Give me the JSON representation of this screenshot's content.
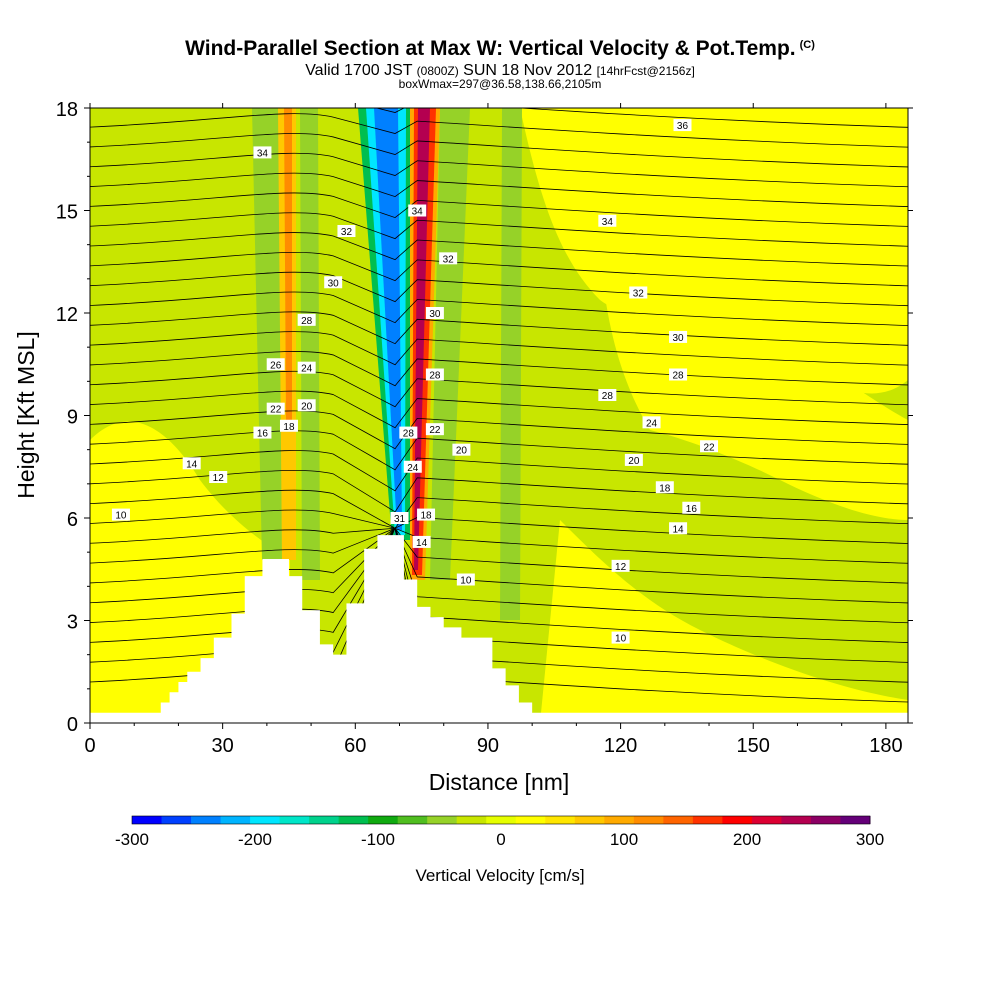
{
  "title": {
    "main": "Wind-Parallel Section at Max W: Vertical Velocity & Pot.Temp.",
    "copyright": "(C)",
    "valid_prefix": "Valid 1700 JST",
    "valid_utc": "(0800Z)",
    "valid_date": "SUN 18 Nov 2012",
    "forecast": "[14hrFcst@2156z]",
    "boxwmax": "boxWmax=297@36.58,138.66,2105m"
  },
  "chart_data": {
    "type": "heatmap",
    "xlabel": "Distance [nm]",
    "ylabel": "Height [Kft MSL]",
    "xlim": [
      0,
      185
    ],
    "ylim": [
      0,
      18
    ],
    "x_ticks": [
      0,
      30,
      60,
      90,
      120,
      150,
      180
    ],
    "y_ticks": [
      0,
      3,
      6,
      9,
      12,
      15,
      18
    ],
    "colorbar": {
      "label": "Vertical Velocity [cm/s]",
      "range": [
        -300,
        300
      ],
      "ticks": [
        -300,
        -200,
        -100,
        0,
        100,
        200,
        300
      ],
      "colors": [
        "#0000ff",
        "#0040ff",
        "#0080ff",
        "#00b4ff",
        "#00e6ff",
        "#00e6c8",
        "#00d28c",
        "#00be50",
        "#10aa10",
        "#50be20",
        "#96d228",
        "#c8e600",
        "#e6ff00",
        "#ffff00",
        "#ffe600",
        "#ffc800",
        "#ffaa00",
        "#ff8c00",
        "#ff6400",
        "#ff3200",
        "#ff0000",
        "#dc0032",
        "#b40050",
        "#8c0064",
        "#640078"
      ]
    },
    "terrain_height_kft": [
      [
        0,
        0.3
      ],
      [
        16,
        0.3
      ],
      [
        16,
        0.6
      ],
      [
        18,
        0.6
      ],
      [
        18,
        0.9
      ],
      [
        20,
        0.9
      ],
      [
        20,
        1.2
      ],
      [
        22,
        1.2
      ],
      [
        22,
        1.5
      ],
      [
        25,
        1.5
      ],
      [
        25,
        1.9
      ],
      [
        28,
        1.9
      ],
      [
        28,
        2.5
      ],
      [
        32,
        2.5
      ],
      [
        32,
        3.2
      ],
      [
        35,
        3.2
      ],
      [
        35,
        4.3
      ],
      [
        39,
        4.3
      ],
      [
        39,
        4.8
      ],
      [
        45,
        4.8
      ],
      [
        45,
        4.3
      ],
      [
        48,
        4.3
      ],
      [
        48,
        3.3
      ],
      [
        52,
        3.3
      ],
      [
        52,
        2.3
      ],
      [
        55,
        2.3
      ],
      [
        55,
        2.0
      ],
      [
        58,
        2.0
      ],
      [
        58,
        3.5
      ],
      [
        62,
        3.5
      ],
      [
        62,
        5.1
      ],
      [
        65,
        5.1
      ],
      [
        65,
        5.5
      ],
      [
        71,
        5.5
      ],
      [
        71,
        4.2
      ],
      [
        74,
        4.2
      ],
      [
        74,
        3.4
      ],
      [
        77,
        3.4
      ],
      [
        77,
        3.1
      ],
      [
        80,
        3.1
      ],
      [
        80,
        2.8
      ],
      [
        84,
        2.8
      ],
      [
        84,
        2.5
      ],
      [
        91,
        2.5
      ],
      [
        91,
        1.6
      ],
      [
        94,
        1.6
      ],
      [
        94,
        1.1
      ],
      [
        97,
        1.1
      ],
      [
        97,
        0.6
      ],
      [
        100,
        0.6
      ],
      [
        100,
        0.3
      ],
      [
        185,
        0.3
      ]
    ],
    "vertical_velocity_features_cm_s": [
      {
        "label": "strong downdraft",
        "x_center": 66,
        "value": -280
      },
      {
        "label": "strong updraft",
        "x_center": 75,
        "value": 300
      },
      {
        "label": "weak updraft",
        "x_center": 46,
        "value": 120
      },
      {
        "label": "weak downdraft",
        "x_center": 40,
        "value": -80
      },
      {
        "label": "weak downdraft",
        "x_center": 96,
        "value": -90
      }
    ],
    "theta_contour_labels": [
      {
        "value": "10",
        "x": 7,
        "y": 6.1
      },
      {
        "value": "12",
        "x": 29,
        "y": 7.2
      },
      {
        "value": "14",
        "x": 23,
        "y": 7.6
      },
      {
        "value": "16",
        "x": 39,
        "y": 8.5
      },
      {
        "value": "18",
        "x": 45,
        "y": 8.7
      },
      {
        "value": "20",
        "x": 49,
        "y": 9.3
      },
      {
        "value": "22",
        "x": 42,
        "y": 9.2
      },
      {
        "value": "24",
        "x": 49,
        "y": 10.4
      },
      {
        "value": "26",
        "x": 42,
        "y": 10.5
      },
      {
        "value": "28",
        "x": 49,
        "y": 11.8
      },
      {
        "value": "30",
        "x": 55,
        "y": 12.9
      },
      {
        "value": "32",
        "x": 58,
        "y": 14.4
      },
      {
        "value": "34",
        "x": 39,
        "y": 16.7
      },
      {
        "value": "31",
        "x": 70,
        "y": 6.0
      },
      {
        "value": "14",
        "x": 75,
        "y": 5.3
      },
      {
        "value": "18",
        "x": 76,
        "y": 6.1
      },
      {
        "value": "24",
        "x": 73,
        "y": 7.5
      },
      {
        "value": "28",
        "x": 72,
        "y": 8.5
      },
      {
        "value": "22",
        "x": 78,
        "y": 8.6
      },
      {
        "value": "20",
        "x": 84,
        "y": 8.0
      },
      {
        "value": "28",
        "x": 78,
        "y": 10.2
      },
      {
        "value": "30",
        "x": 78,
        "y": 12.0
      },
      {
        "value": "32",
        "x": 81,
        "y": 13.6
      },
      {
        "value": "34",
        "x": 74,
        "y": 15.0
      },
      {
        "value": "10",
        "x": 85,
        "y": 4.2
      },
      {
        "value": "10",
        "x": 120,
        "y": 2.5
      },
      {
        "value": "12",
        "x": 120,
        "y": 4.6
      },
      {
        "value": "14",
        "x": 133,
        "y": 5.7
      },
      {
        "value": "16",
        "x": 136,
        "y": 6.3
      },
      {
        "value": "18",
        "x": 130,
        "y": 6.9
      },
      {
        "value": "20",
        "x": 123,
        "y": 7.7
      },
      {
        "value": "22",
        "x": 140,
        "y": 8.1
      },
      {
        "value": "24",
        "x": 127,
        "y": 8.8
      },
      {
        "value": "28",
        "x": 117,
        "y": 9.6
      },
      {
        "value": "28",
        "x": 133,
        "y": 10.2
      },
      {
        "value": "30",
        "x": 133,
        "y": 11.3
      },
      {
        "value": "32",
        "x": 124,
        "y": 12.6
      },
      {
        "value": "34",
        "x": 117,
        "y": 14.7
      },
      {
        "value": "36",
        "x": 134,
        "y": 17.5
      }
    ]
  }
}
